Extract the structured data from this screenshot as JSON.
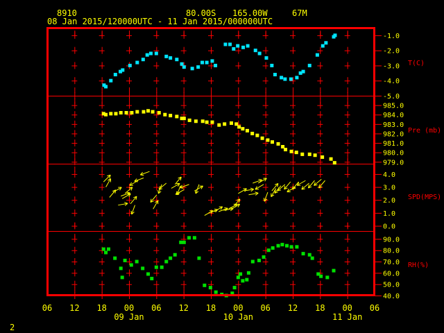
{
  "header": {
    "station": "8910",
    "lat": "80.00S",
    "lon": "165.00W",
    "elev": "67M",
    "period": "08 Jan 2015/120000UTC - 11 Jan 2015/000000UTC"
  },
  "footer": {
    "page_number": "2"
  },
  "colors": {
    "background": "#000000",
    "frame": "#ff0000",
    "header_text": "#ffff00",
    "axis_text": "#ffff00",
    "temperature": "#00e5ff",
    "pressure": "#ffff00",
    "wind": "#ffff00",
    "humidity": "#00e000"
  },
  "chart_data": {
    "type": "scatter",
    "x_axis": {
      "unit": "hours since 08 Jan 2015 06 UTC",
      "range": [
        0,
        72
      ],
      "tick_labels": [
        "06",
        "12",
        "18",
        "00",
        "06",
        "12",
        "18",
        "00",
        "06",
        "12",
        "18",
        "00",
        "06"
      ],
      "tick_hours": [
        0,
        6,
        12,
        18,
        24,
        30,
        36,
        42,
        48,
        54,
        60,
        66,
        72
      ],
      "date_labels": [
        {
          "label": "09 Jan",
          "at_hour": 18
        },
        {
          "label": "10 Jan",
          "at_hour": 42
        },
        {
          "label": "11 Jan",
          "at_hour": 66
        }
      ]
    },
    "panels": [
      {
        "name": "temperature",
        "label": "T(C)",
        "ylim": [
          -5.0,
          -0.5
        ],
        "tick_values": [
          -5.0,
          -4.0,
          -3.0,
          -2.0,
          -1.0
        ],
        "tick_labels": [
          "-5.0",
          "-4.0",
          "-3.0",
          "-2.0",
          "-1.0"
        ],
        "x": [
          12.5,
          12.9,
          14.0,
          15.0,
          16.1,
          16.6,
          18.2,
          19.8,
          21.1,
          22.0,
          22.8,
          24.0,
          26.2,
          27.1,
          28.5,
          29.6,
          30.1,
          31.9,
          33.2,
          34.1,
          35.1,
          36.3,
          37.0,
          39.2,
          40.2,
          41.0,
          41.9,
          43.1,
          44.1,
          45.8,
          46.7,
          48.2,
          49.4,
          50.1,
          51.5,
          52.3,
          53.6,
          54.9,
          55.7,
          56.3,
          57.7,
          59.4,
          60.6,
          61.3,
          63.0,
          63.3
        ],
        "y": [
          -4.3,
          -4.4,
          -4.0,
          -3.6,
          -3.4,
          -3.3,
          -3.0,
          -2.8,
          -2.6,
          -2.3,
          -2.2,
          -2.2,
          -2.4,
          -2.5,
          -2.6,
          -2.9,
          -3.1,
          -3.2,
          -3.1,
          -2.8,
          -2.8,
          -2.7,
          -3.0,
          -1.6,
          -1.6,
          -1.9,
          -1.7,
          -1.8,
          -1.7,
          -2.0,
          -2.2,
          -2.5,
          -3.0,
          -3.6,
          -3.8,
          -3.9,
          -3.9,
          -3.8,
          -3.5,
          -3.4,
          -3.0,
          -2.3,
          -1.7,
          -1.5,
          -1.1,
          -1.0
        ]
      },
      {
        "name": "pressure",
        "label": "Pre (mb)",
        "ylim": [
          978.8,
          986.0
        ],
        "tick_values": [
          979.0,
          980.0,
          981.0,
          982.0,
          983.0,
          984.0,
          985.0
        ],
        "tick_labels": [
          "979.0",
          "980.0",
          "981.0",
          "982.0",
          "983.0",
          "984.0",
          "985.0"
        ],
        "x": [
          12.4,
          12.9,
          14.0,
          15.1,
          16.2,
          17.4,
          18.6,
          19.8,
          21.2,
          22.2,
          23.2,
          24.6,
          25.9,
          27.1,
          28.5,
          29.6,
          30.1,
          31.3,
          32.7,
          34.2,
          35.1,
          36.3,
          37.8,
          39.0,
          40.5,
          41.6,
          42.2,
          43.0,
          44.0,
          45.1,
          46.2,
          47.3,
          48.5,
          49.5,
          50.8,
          51.8,
          52.4,
          53.7,
          54.8,
          56.1,
          57.7,
          58.9,
          60.5,
          62.4,
          63.2
        ],
        "y": [
          984.1,
          984.0,
          984.1,
          984.1,
          984.2,
          984.2,
          984.2,
          984.3,
          984.3,
          984.4,
          984.3,
          984.2,
          984.0,
          983.9,
          983.8,
          983.6,
          983.6,
          983.4,
          983.3,
          983.3,
          983.2,
          983.2,
          982.9,
          983.0,
          983.1,
          983.0,
          982.7,
          982.5,
          982.3,
          982.0,
          981.8,
          981.5,
          981.3,
          981.1,
          980.9,
          980.6,
          980.3,
          980.1,
          980.0,
          979.8,
          979.8,
          979.7,
          979.5,
          979.3,
          978.9
        ]
      },
      {
        "name": "wind",
        "label": "SPD(MPS)",
        "ylim": [
          -0.4,
          4.8
        ],
        "tick_values": [
          0.0,
          1.0,
          2.0,
          3.0,
          4.0
        ],
        "tick_labels": [
          "0.0",
          "1.0",
          "2.0",
          "3.0",
          "4.0"
        ],
        "x": [
          12.4,
          12.9,
          13.7,
          14.5,
          15.6,
          16.2,
          16.5,
          17.1,
          18.3,
          19.3,
          20.0,
          21.2,
          22.5,
          23.3,
          24.1,
          25.2,
          26.2,
          27.3,
          28.1,
          29.3,
          30.1,
          31.2,
          32.4,
          33.4,
          34.6,
          35.5,
          36.7,
          37.7,
          38.8,
          39.9,
          40.5,
          41.0,
          42.0,
          43.3,
          44.3,
          45.2,
          46.4,
          47.6,
          48.5,
          49.4,
          50.3,
          51.4,
          52.3,
          53.5,
          54.6,
          55.3,
          56.8,
          57.6,
          58.8,
          60.3,
          61.1
        ],
        "y": [
          3.4,
          3.0,
          2.2,
          2.6,
          1.6,
          2.3,
          2.1,
          2.5,
          1.7,
          1.6,
          3.5,
          3.7,
          4.2,
          1.3,
          2.4,
          3.2,
          3.3,
          2.9,
          3.2,
          3.1,
          2.8,
          3.2,
          2.7,
          3.2,
          0.8,
          1.0,
          1.1,
          1.1,
          1.2,
          1.3,
          1.3,
          1.5,
          2.5,
          2.7,
          2.4,
          3.3,
          3.3,
          3.2,
          2.6,
          2.7,
          2.9,
          3.1,
          3.2,
          3.4,
          3.0,
          3.4,
          3.5,
          3.3,
          3.5,
          3.6,
          3.5
        ],
        "direction_deg": [
          45,
          30,
          40,
          60,
          80,
          70,
          60,
          50,
          40,
          200,
          240,
          250,
          250,
          30,
          220,
          200,
          230,
          60,
          40,
          200,
          240,
          250,
          60,
          200,
          60,
          70,
          60,
          70,
          80,
          60,
          60,
          40,
          60,
          80,
          80,
          70,
          60,
          240,
          200,
          40,
          210,
          220,
          230,
          220,
          240,
          220,
          240,
          230,
          220,
          230,
          220
        ]
      },
      {
        "name": "humidity",
        "label": "RH(%)",
        "ylim": [
          40.0,
          97.0
        ],
        "tick_values": [
          40.0,
          50.0,
          60.0,
          70.0,
          80.0,
          90.0
        ],
        "tick_labels": [
          "40.0",
          "50.0",
          "60.0",
          "70.0",
          "80.0",
          "90.0"
        ],
        "x": [
          12.4,
          12.9,
          13.5,
          14.9,
          16.2,
          16.5,
          17.1,
          18.5,
          19.7,
          21.0,
          22.2,
          23.0,
          24.0,
          25.2,
          26.2,
          27.1,
          28.1,
          29.4,
          30.1,
          31.2,
          32.4,
          33.4,
          34.6,
          35.9,
          37.1,
          38.4,
          39.4,
          40.7,
          41.2,
          42.0,
          42.5,
          43.0,
          43.9,
          44.3,
          45.2,
          46.6,
          47.6,
          48.7,
          49.6,
          50.8,
          51.7,
          52.7,
          53.7,
          54.9,
          56.3,
          57.7,
          58.3,
          59.6,
          60.2,
          61.6,
          63.0
        ],
        "y": [
          81,
          78,
          81,
          73,
          64,
          56,
          71,
          67,
          70,
          64,
          59,
          55,
          65,
          65,
          70,
          73,
          76,
          87,
          87,
          91,
          91,
          73,
          49,
          47,
          43,
          41,
          40,
          42,
          47,
          56,
          59,
          53,
          54,
          60,
          70,
          71,
          74,
          80,
          82,
          84,
          85,
          84,
          83,
          83,
          77,
          76,
          73,
          59,
          57,
          56,
          62
        ]
      }
    ]
  }
}
